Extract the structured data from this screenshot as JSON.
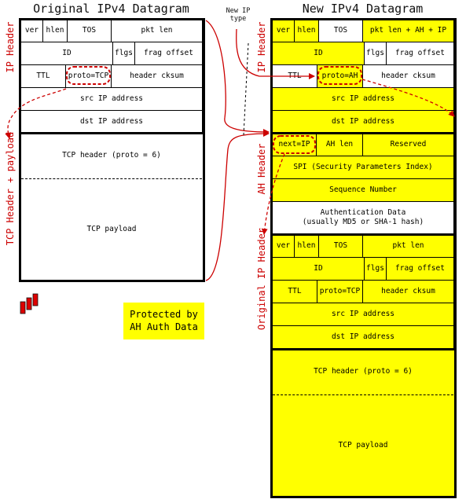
{
  "titles": {
    "original": "Original IPv4 Datagram",
    "new": "New IPv4 Datagram"
  },
  "note": "New IP\ntype",
  "side_labels": {
    "ip_header_left": "IP Header",
    "tcp_header_payload": "TCP Header + payload",
    "ip_header_right": "IP Header",
    "ah_header": "AH Header",
    "original_ip_header": "Original IP Header"
  },
  "original_datagram": {
    "row1": [
      "ver",
      "hlen",
      "TOS",
      "pkt len"
    ],
    "row2": [
      "ID",
      "flgs",
      "frag offset"
    ],
    "row3": [
      "TTL",
      "proto=TCP",
      "header cksum"
    ],
    "src": "src IP address",
    "dst": "dst IP address",
    "tcp_header": "TCP header (proto = 6)",
    "tcp_payload": "TCP payload"
  },
  "new_datagram": {
    "ip_header": {
      "row1": [
        "ver",
        "hlen",
        "TOS",
        "pkt len + AH + IP"
      ],
      "row2": [
        "ID",
        "flgs",
        "frag offset"
      ],
      "row3": [
        "TTL",
        "proto=AH",
        "header cksum"
      ],
      "src": "src IP address",
      "dst": "dst IP address"
    },
    "ah_header": {
      "row1": [
        "next=IP",
        "AH len",
        "Reserved"
      ],
      "spi": "SPI (Security Parameters Index)",
      "seq": "Sequence Number",
      "auth": "Authentication Data\n(usually MD5 or SHA-1 hash)"
    },
    "original_ip_header": {
      "row1": [
        "ver",
        "hlen",
        "TOS",
        "pkt len"
      ],
      "row2": [
        "ID",
        "flgs",
        "frag offset"
      ],
      "row3": [
        "TTL",
        "proto=TCP",
        "header cksum"
      ],
      "src": "src IP address",
      "dst": "dst IP address"
    },
    "tcp_header": "TCP header (proto = 6)",
    "tcp_payload": "TCP payload"
  },
  "legend": {
    "protected": "Protected by\nAH Auth Data"
  },
  "colors": {
    "protected": "#ffff00",
    "unprotected": "#ffffff",
    "annotation": "#cc0000",
    "logo": "#dd0000"
  },
  "icons": {
    "logo": "red-bars-logo-icon"
  }
}
